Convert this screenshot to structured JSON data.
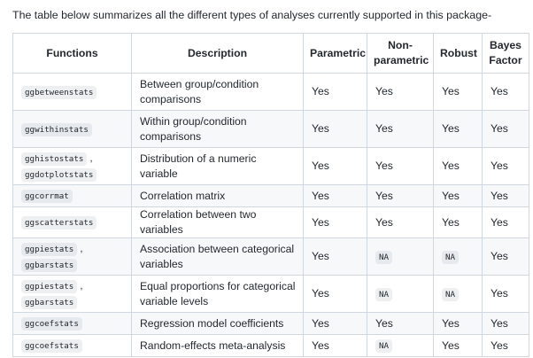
{
  "intro": "The table below summarizes all the different types of analyses currently supported in this package-",
  "headers": [
    "Functions",
    "Description",
    "Parametric",
    "Non-\nparametric",
    "Robust",
    "Bayes\nFactor"
  ],
  "rows": [
    {
      "functions": [
        "ggbetweenstats"
      ],
      "description": "Between group/condition comparisons",
      "parametric": "Yes",
      "nonparametric": "Yes",
      "robust": "Yes",
      "bayes": "Yes"
    },
    {
      "functions": [
        "ggwithinstats"
      ],
      "description": "Within group/condition comparisons",
      "parametric": "Yes",
      "nonparametric": "Yes",
      "robust": "Yes",
      "bayes": "Yes"
    },
    {
      "functions": [
        "gghistostats",
        "ggdotplotstats"
      ],
      "description": "Distribution of a numeric variable",
      "parametric": "Yes",
      "nonparametric": "Yes",
      "robust": "Yes",
      "bayes": "Yes"
    },
    {
      "functions": [
        "ggcorrmat"
      ],
      "description": "Correlation matrix",
      "parametric": "Yes",
      "nonparametric": "Yes",
      "robust": "Yes",
      "bayes": "Yes"
    },
    {
      "functions": [
        "ggscatterstats"
      ],
      "description": "Correlation between two variables",
      "parametric": "Yes",
      "nonparametric": "Yes",
      "robust": "Yes",
      "bayes": "Yes"
    },
    {
      "functions": [
        "ggpiestats",
        "ggbarstats"
      ],
      "description": "Association between categorical variables",
      "parametric": "Yes",
      "nonparametric": "NA",
      "robust": "NA",
      "bayes": "Yes"
    },
    {
      "functions": [
        "ggpiestats",
        "ggbarstats"
      ],
      "description": "Equal proportions for categorical variable levels",
      "parametric": "Yes",
      "nonparametric": "NA",
      "robust": "NA",
      "bayes": "Yes"
    },
    {
      "functions": [
        "ggcoefstats"
      ],
      "description": "Regression model coefficients",
      "parametric": "Yes",
      "nonparametric": "Yes",
      "robust": "Yes",
      "bayes": "Yes"
    },
    {
      "functions": [
        "ggcoefstats"
      ],
      "description": "Random-effects meta-analysis",
      "parametric": "Yes",
      "nonparametric": "NA",
      "robust": "Yes",
      "bayes": "Yes"
    }
  ]
}
